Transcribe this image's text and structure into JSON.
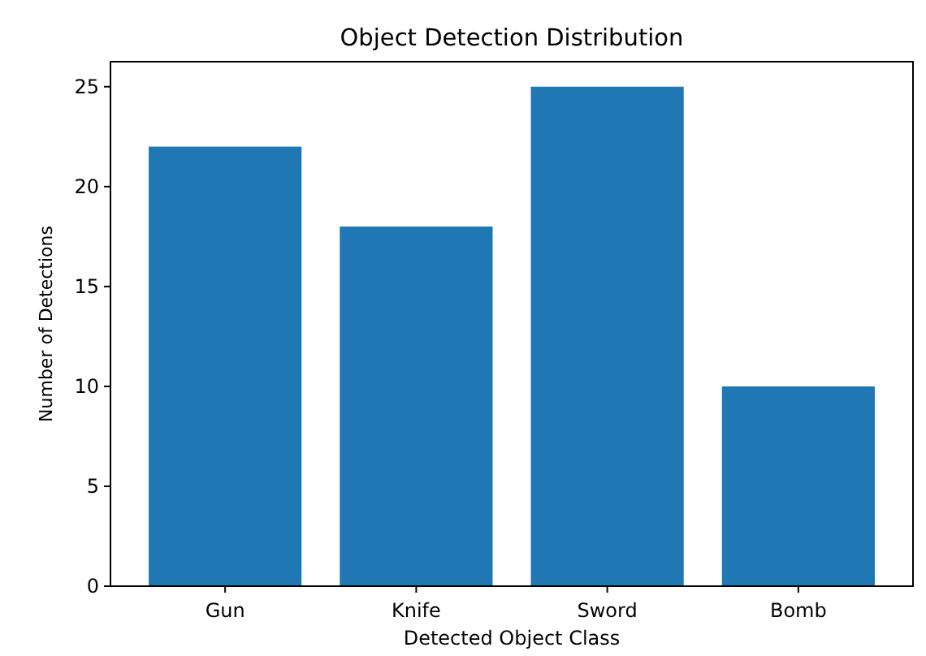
{
  "chart_data": {
    "type": "bar",
    "title": "Object Detection Distribution",
    "xlabel": "Detected Object Class",
    "ylabel": "Number of Detections",
    "categories": [
      "Gun",
      "Knife",
      "Sword",
      "Bomb"
    ],
    "values": [
      22,
      18,
      25,
      10
    ],
    "color": "#1f77b4",
    "ylim": [
      0,
      26.25
    ],
    "yticks": [
      0,
      5,
      10,
      15,
      20,
      25
    ],
    "grid": false
  }
}
